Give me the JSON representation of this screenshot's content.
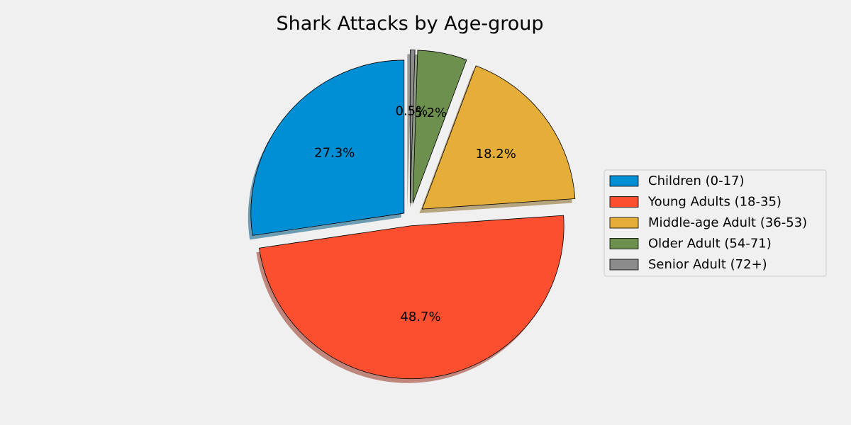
{
  "chart_data": {
    "type": "pie",
    "title": "Shark Attacks by Age-group",
    "categories": [
      "Children (0-17)",
      "Young Adults (18-35)",
      "Middle-age Adult (36-53)",
      "Older Adult (54-71)",
      "Senior Adult (72+)"
    ],
    "values": [
      27.3,
      48.7,
      18.2,
      5.2,
      0.5
    ],
    "labels": [
      "27.3%",
      "48.7%",
      "18.2%",
      "5.2%",
      "0.5%"
    ],
    "colors": [
      "#008fd5",
      "#fc4f30",
      "#e5ae38",
      "#6d904f",
      "#8b8b8b"
    ],
    "explode": [
      0.05,
      0.05,
      0.1,
      0.1,
      0.1
    ],
    "start_angle": 90,
    "direction": "counterclockwise",
    "shadow": true,
    "legend_position": "right"
  }
}
